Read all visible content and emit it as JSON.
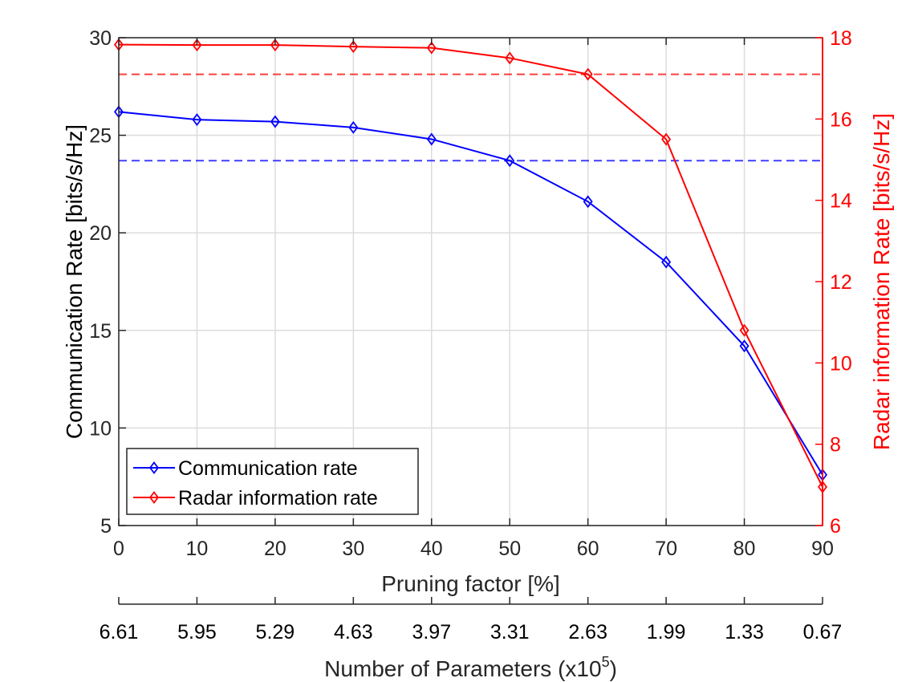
{
  "chart_data": {
    "type": "line",
    "x": [
      0,
      10,
      20,
      30,
      40,
      50,
      60,
      70,
      80,
      90
    ],
    "xlim": [
      0,
      90
    ],
    "xlabel": "Pruning factor [%]",
    "x_ticks": [
      "0",
      "10",
      "20",
      "30",
      "40",
      "50",
      "60",
      "70",
      "80",
      "90"
    ],
    "secondary_x": {
      "label_prefix": "Number of Parameters (x10",
      "label_exponent": "5",
      "label_suffix": ")",
      "tick_labels": [
        "6.61",
        "5.95",
        "5.29",
        "4.63",
        "3.97",
        "3.31",
        "2.63",
        "1.99",
        "1.33",
        "0.67"
      ]
    },
    "y_left": {
      "label": "Communication Rate [bits/s/Hz]",
      "ylim": [
        5,
        30
      ],
      "ticks": [
        "5",
        "10",
        "15",
        "20",
        "25",
        "30"
      ],
      "color": "#000000"
    },
    "y_right": {
      "label": "Radar information Rate [bits/s/Hz]",
      "ylim": [
        6,
        18
      ],
      "ticks": [
        "6",
        "8",
        "10",
        "12",
        "14",
        "16",
        "18"
      ],
      "color": "#ff0000"
    },
    "grid": true,
    "series": [
      {
        "name": "Communication rate",
        "axis": "left",
        "color": "#0000ff",
        "marker": "diamond",
        "values": [
          26.2,
          25.8,
          25.7,
          25.4,
          24.8,
          23.7,
          21.6,
          18.5,
          14.2,
          7.6
        ]
      },
      {
        "name": "Radar information rate",
        "axis": "right",
        "color": "#ff0000",
        "marker": "diamond",
        "values": [
          17.83,
          17.82,
          17.82,
          17.78,
          17.75,
          17.5,
          17.1,
          15.5,
          10.8,
          6.95
        ]
      }
    ],
    "reference_lines": [
      {
        "axis": "left",
        "value": 23.7,
        "color": "#0000ff",
        "style": "dashed"
      },
      {
        "axis": "right",
        "value": 17.1,
        "color": "#ff0000",
        "style": "dashed"
      }
    ],
    "legend_position": "bottom-left"
  }
}
